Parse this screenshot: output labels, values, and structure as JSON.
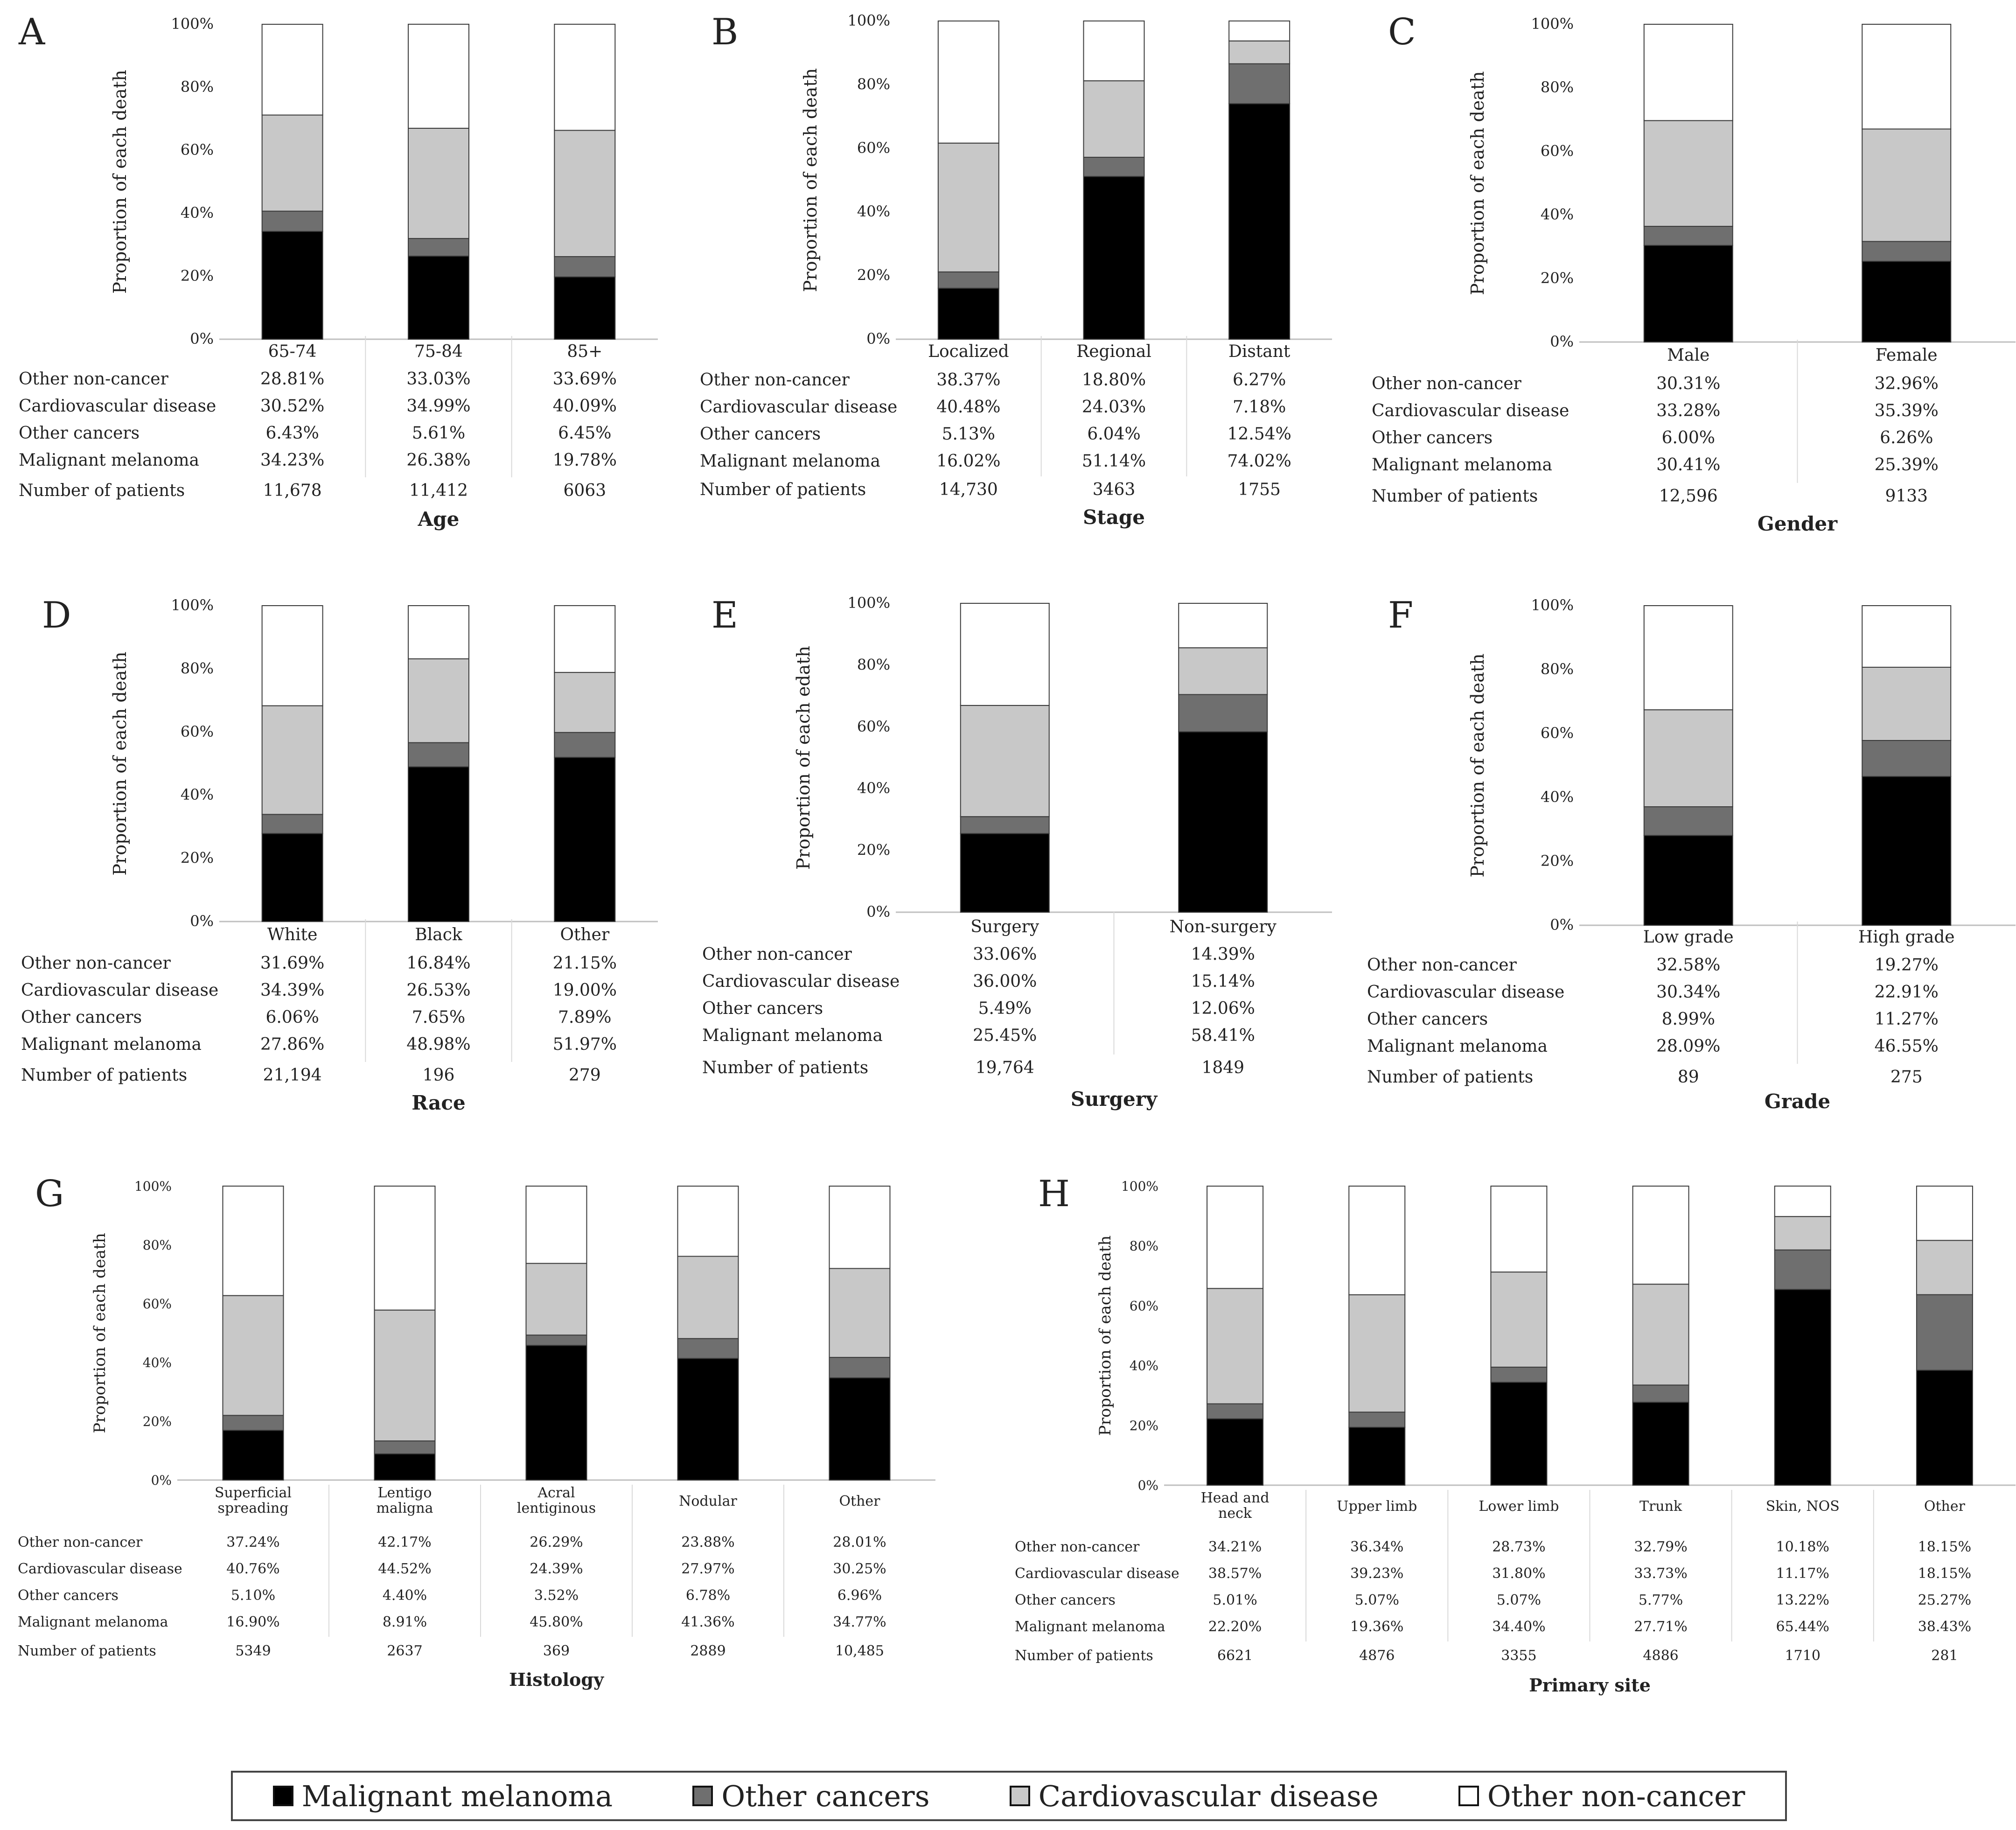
{
  "colors": {
    "Malignant melanoma": "#000000",
    "Other cancers": "#6f6f6f",
    "Cardiovascular disease": "#c8c8c8",
    "Other non-cancer": "#ffffff",
    "axis": "#bfbfbf",
    "text": "#222222"
  },
  "legend": [
    "Malignant melanoma",
    "Other cancers",
    "Cardiovascular disease",
    "Other non-cancer"
  ],
  "chart_data": [
    {
      "panel": "A",
      "type": "bar",
      "stacked": true,
      "title": "",
      "ylabel": "Proportion of each death",
      "xlabel": "Age",
      "yticks": [
        "0%",
        "20%",
        "40%",
        "60%",
        "80%",
        "100%"
      ],
      "ylim": [
        0,
        100
      ],
      "categories": [
        "65-74",
        "75-84",
        "85+"
      ],
      "series": [
        {
          "name": "Malignant melanoma",
          "values": [
            34.23,
            26.38,
            19.78
          ],
          "labels": [
            "34.23%",
            "26.38%",
            "19.78%"
          ]
        },
        {
          "name": "Other cancers",
          "values": [
            6.43,
            5.61,
            6.45
          ],
          "labels": [
            "6.43%",
            "5.61%",
            "6.45%"
          ]
        },
        {
          "name": "Cardiovascular disease",
          "values": [
            30.52,
            34.99,
            40.09
          ],
          "labels": [
            "30.52%",
            "34.99%",
            "40.09%"
          ]
        },
        {
          "name": "Other non-cancer",
          "values": [
            28.81,
            33.03,
            33.69
          ],
          "labels": [
            "28.81%",
            "33.03%",
            "33.69%"
          ]
        }
      ],
      "patients_label": "Number of patients",
      "patients": [
        "11,678",
        "11,412",
        "6063"
      ]
    },
    {
      "panel": "B",
      "type": "bar",
      "stacked": true,
      "title": "",
      "ylabel": "Proportion of each death",
      "xlabel": "Stage",
      "yticks": [
        "0%",
        "20%",
        "40%",
        "60%",
        "80%",
        "100%"
      ],
      "ylim": [
        0,
        100
      ],
      "categories": [
        "Localized",
        "Regional",
        "Distant"
      ],
      "series": [
        {
          "name": "Malignant melanoma",
          "values": [
            16.02,
            51.14,
            74.02
          ],
          "labels": [
            "16.02%",
            "51.14%",
            "74.02%"
          ]
        },
        {
          "name": "Other cancers",
          "values": [
            5.13,
            6.04,
            12.54
          ],
          "labels": [
            "5.13%",
            "6.04%",
            "12.54%"
          ]
        },
        {
          "name": "Cardiovascular disease",
          "values": [
            40.48,
            24.03,
            7.18
          ],
          "labels": [
            "40.48%",
            "24.03%",
            "7.18%"
          ]
        },
        {
          "name": "Other non-cancer",
          "values": [
            38.37,
            18.8,
            6.27
          ],
          "labels": [
            "38.37%",
            "18.80%",
            "6.27%"
          ]
        }
      ],
      "patients_label": "Number of patients",
      "patients": [
        "14,730",
        "3463",
        "1755"
      ]
    },
    {
      "panel": "C",
      "type": "bar",
      "stacked": true,
      "title": "",
      "ylabel": "Proportion of each death",
      "xlabel": "Gender",
      "yticks": [
        "0%",
        "20%",
        "40%",
        "60%",
        "80%",
        "100%"
      ],
      "ylim": [
        0,
        100
      ],
      "categories": [
        "Male",
        "Female"
      ],
      "series": [
        {
          "name": "Malignant melanoma",
          "values": [
            30.41,
            25.39
          ],
          "labels": [
            "30.41%",
            "25.39%"
          ]
        },
        {
          "name": "Other cancers",
          "values": [
            6.0,
            6.26
          ],
          "labels": [
            "6.00%",
            "6.26%"
          ]
        },
        {
          "name": "Cardiovascular disease",
          "values": [
            33.28,
            35.39
          ],
          "labels": [
            "33.28%",
            "35.39%"
          ]
        },
        {
          "name": "Other non-cancer",
          "values": [
            30.31,
            32.96
          ],
          "labels": [
            "30.31%",
            "32.96%"
          ]
        }
      ],
      "patients_label": "Number of patients",
      "patients": [
        "12,596",
        "9133"
      ]
    },
    {
      "panel": "D",
      "type": "bar",
      "stacked": true,
      "title": "",
      "ylabel": "Proportion of each death",
      "xlabel": "Race",
      "yticks": [
        "0%",
        "20%",
        "40%",
        "60%",
        "80%",
        "100%"
      ],
      "ylim": [
        0,
        100
      ],
      "categories": [
        "White",
        "Black",
        "Other"
      ],
      "series": [
        {
          "name": "Malignant melanoma",
          "values": [
            27.86,
            48.98,
            51.97
          ],
          "labels": [
            "27.86%",
            "48.98%",
            "51.97%"
          ]
        },
        {
          "name": "Other cancers",
          "values": [
            6.06,
            7.65,
            7.89
          ],
          "labels": [
            "6.06%",
            "7.65%",
            "7.89%"
          ]
        },
        {
          "name": "Cardiovascular disease",
          "values": [
            34.39,
            26.53,
            19.0
          ],
          "labels": [
            "34.39%",
            "26.53%",
            "19.00%"
          ]
        },
        {
          "name": "Other non-cancer",
          "values": [
            31.69,
            16.84,
            21.15
          ],
          "labels": [
            "31.69%",
            "16.84%",
            "21.15%"
          ]
        }
      ],
      "patients_label": "Number of patients",
      "patients": [
        "21,194",
        "196",
        "279"
      ]
    },
    {
      "panel": "E",
      "type": "bar",
      "stacked": true,
      "title": "",
      "ylabel": "Proportion of each edath",
      "xlabel": "Surgery",
      "yticks": [
        "0%",
        "20%",
        "40%",
        "60%",
        "80%",
        "100%"
      ],
      "ylim": [
        0,
        100
      ],
      "categories": [
        "Surgery",
        "Non-surgery"
      ],
      "series": [
        {
          "name": "Malignant melanoma",
          "values": [
            25.45,
            58.41
          ],
          "labels": [
            "25.45%",
            "58.41%"
          ]
        },
        {
          "name": "Other cancers",
          "values": [
            5.49,
            12.06
          ],
          "labels": [
            "5.49%",
            "12.06%"
          ]
        },
        {
          "name": "Cardiovascular disease",
          "values": [
            36.0,
            15.14
          ],
          "labels": [
            "36.00%",
            "15.14%"
          ]
        },
        {
          "name": "Other non-cancer",
          "values": [
            33.06,
            14.39
          ],
          "labels": [
            "33.06%",
            "14.39%"
          ]
        }
      ],
      "patients_label": "Number of patients",
      "patients": [
        "19,764",
        "1849"
      ]
    },
    {
      "panel": "F",
      "type": "bar",
      "stacked": true,
      "title": "",
      "ylabel": "Proportion of each death",
      "xlabel": "Grade",
      "yticks": [
        "0%",
        "20%",
        "40%",
        "60%",
        "80%",
        "100%"
      ],
      "ylim": [
        0,
        100
      ],
      "categories": [
        "Low grade",
        "High grade"
      ],
      "series": [
        {
          "name": "Malignant melanoma",
          "values": [
            28.09,
            46.55
          ],
          "labels": [
            "28.09%",
            "46.55%"
          ]
        },
        {
          "name": "Other cancers",
          "values": [
            8.99,
            11.27
          ],
          "labels": [
            "8.99%",
            "11.27%"
          ]
        },
        {
          "name": "Cardiovascular disease",
          "values": [
            30.34,
            22.91
          ],
          "labels": [
            "30.34%",
            "22.91%"
          ]
        },
        {
          "name": "Other non-cancer",
          "values": [
            32.58,
            19.27
          ],
          "labels": [
            "32.58%",
            "19.27%"
          ]
        }
      ],
      "patients_label": "Number of patients",
      "patients": [
        "89",
        "275"
      ]
    },
    {
      "panel": "G",
      "type": "bar",
      "stacked": true,
      "title": "",
      "ylabel": "Proportion of each death",
      "xlabel": "Histology",
      "yticks": [
        "0%",
        "20%",
        "40%",
        "60%",
        "80%",
        "100%"
      ],
      "ylim": [
        0,
        100
      ],
      "categories": [
        "Superficial spreading",
        "Lentigo maligna",
        "Acral lentiginous",
        "Nodular",
        "Other"
      ],
      "series": [
        {
          "name": "Malignant melanoma",
          "values": [
            16.9,
            8.91,
            45.8,
            41.36,
            34.77
          ],
          "labels": [
            "16.90%",
            "8.91%",
            "45.80%",
            "41.36%",
            "34.77%"
          ]
        },
        {
          "name": "Other cancers",
          "values": [
            5.1,
            4.4,
            3.52,
            6.78,
            6.96
          ],
          "labels": [
            "5.10%",
            "4.40%",
            "3.52%",
            "6.78%",
            "6.96%"
          ]
        },
        {
          "name": "Cardiovascular disease",
          "values": [
            40.76,
            44.52,
            24.39,
            27.97,
            30.25
          ],
          "labels": [
            "40.76%",
            "44.52%",
            "24.39%",
            "27.97%",
            "30.25%"
          ]
        },
        {
          "name": "Other non-cancer",
          "values": [
            37.24,
            42.17,
            26.29,
            23.88,
            28.01
          ],
          "labels": [
            "37.24%",
            "42.17%",
            "26.29%",
            "23.88%",
            "28.01%"
          ]
        }
      ],
      "patients_label": "Number of patients",
      "patients": [
        "5349",
        "2637",
        "369",
        "2889",
        "10,485"
      ]
    },
    {
      "panel": "H",
      "type": "bar",
      "stacked": true,
      "title": "",
      "ylabel": "Proportion of each death",
      "xlabel": "Primary site",
      "yticks": [
        "0%",
        "20%",
        "40%",
        "60%",
        "80%",
        "100%"
      ],
      "ylim": [
        0,
        100
      ],
      "categories": [
        "Head and neck",
        "Upper limb",
        "Lower limb",
        "Trunk",
        "Skin, NOS",
        "Other"
      ],
      "series": [
        {
          "name": "Malignant melanoma",
          "values": [
            22.2,
            19.36,
            34.4,
            27.71,
            65.44,
            38.43
          ],
          "labels": [
            "22.20%",
            "19.36%",
            "34.40%",
            "27.71%",
            "65.44%",
            "38.43%"
          ]
        },
        {
          "name": "Other cancers",
          "values": [
            5.01,
            5.07,
            5.07,
            5.77,
            13.22,
            25.27
          ],
          "labels": [
            "5.01%",
            "5.07%",
            "5.07%",
            "5.77%",
            "13.22%",
            "25.27%"
          ]
        },
        {
          "name": "Cardiovascular disease",
          "values": [
            38.57,
            39.23,
            31.8,
            33.73,
            11.17,
            18.15
          ],
          "labels": [
            "38.57%",
            "39.23%",
            "31.80%",
            "33.73%",
            "11.17%",
            "18.15%"
          ]
        },
        {
          "name": "Other non-cancer",
          "values": [
            34.21,
            36.34,
            28.73,
            32.79,
            10.18,
            18.15
          ],
          "labels": [
            "34.21%",
            "36.34%",
            "28.73%",
            "32.79%",
            "10.18%",
            "18.15%"
          ]
        }
      ],
      "patients_label": "Number of patients",
      "patients": [
        "6621",
        "4876",
        "3355",
        "4886",
        "1710",
        "281"
      ]
    }
  ]
}
